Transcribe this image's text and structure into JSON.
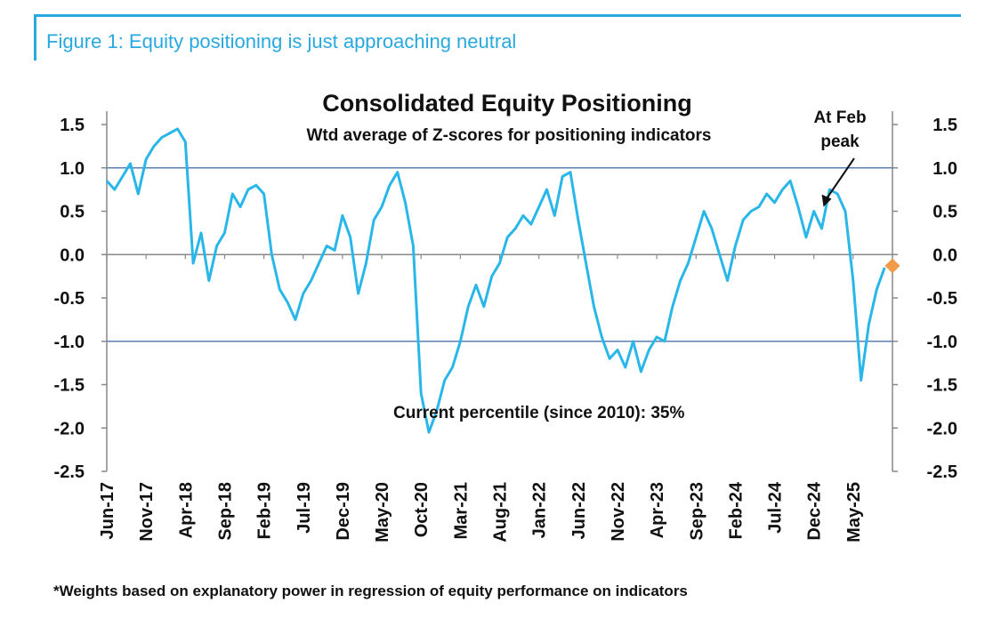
{
  "figure_title": "Figure 1: Equity positioning is just approaching neutral",
  "footnote": "*Weights based on explanatory power in regression of equity performance on indicators",
  "colors": {
    "accent": "#29a8e0",
    "series": "#29b6e8",
    "marker": "#f2994a",
    "refline": "#5b7fb5"
  },
  "chart_data": {
    "type": "line",
    "title": "Consolidated Equity Positioning",
    "subtitle": "Wtd average of Z-scores for positioning indicators",
    "ylim": [
      -2.5,
      1.5
    ],
    "yticks": [
      "1.5",
      "1.0",
      "0.5",
      "0.0",
      "-0.5",
      "-1.0",
      "-1.5",
      "-2.0",
      "-2.5"
    ],
    "ytick_values": [
      1.5,
      1.0,
      0.5,
      0.0,
      -0.5,
      -1.0,
      -1.5,
      -2.0,
      -2.5
    ],
    "reference_lines": [
      1.0,
      -1.0
    ],
    "xlim": [
      "Jun-17",
      "Oct-25"
    ],
    "xtick_labels": [
      "Jun-17",
      "Nov-17",
      "Apr-18",
      "Sep-18",
      "Feb-19",
      "Jul-19",
      "Dec-19",
      "May-20",
      "Oct-20",
      "Mar-21",
      "Aug-21",
      "Jan-22",
      "Jun-22",
      "Nov-22",
      "Apr-23",
      "Sep-23",
      "Feb-24",
      "Jul-24",
      "Dec-24",
      "May-25"
    ],
    "x": [
      "2017-06",
      "2017-07",
      "2017-08",
      "2017-09",
      "2017-10",
      "2017-11",
      "2017-12",
      "2018-01",
      "2018-02",
      "2018-03",
      "2018-04",
      "2018-05",
      "2018-06",
      "2018-07",
      "2018-08",
      "2018-09",
      "2018-10",
      "2018-11",
      "2018-12",
      "2019-01",
      "2019-02",
      "2019-03",
      "2019-04",
      "2019-05",
      "2019-06",
      "2019-07",
      "2019-08",
      "2019-09",
      "2019-10",
      "2019-11",
      "2019-12",
      "2020-01",
      "2020-02",
      "2020-03",
      "2020-04",
      "2020-05",
      "2020-06",
      "2020-07",
      "2020-08",
      "2020-09",
      "2020-10",
      "2020-11",
      "2020-12",
      "2021-01",
      "2021-02",
      "2021-03",
      "2021-04",
      "2021-05",
      "2021-06",
      "2021-07",
      "2021-08",
      "2021-09",
      "2021-10",
      "2021-11",
      "2021-12",
      "2022-01",
      "2022-02",
      "2022-03",
      "2022-04",
      "2022-05",
      "2022-06",
      "2022-07",
      "2022-08",
      "2022-09",
      "2022-10",
      "2022-11",
      "2022-12",
      "2023-01",
      "2023-02",
      "2023-03",
      "2023-04",
      "2023-05",
      "2023-06",
      "2023-07",
      "2023-08",
      "2023-09",
      "2023-10",
      "2023-11",
      "2023-12",
      "2024-01",
      "2024-02",
      "2024-03",
      "2024-04",
      "2024-05",
      "2024-06",
      "2024-07",
      "2024-08",
      "2024-09",
      "2024-10",
      "2024-11",
      "2024-12",
      "2025-01",
      "2025-02",
      "2025-03",
      "2025-04",
      "2025-05",
      "2025-06",
      "2025-07",
      "2025-08",
      "2025-09"
    ],
    "series": [
      {
        "values": [
          0.85,
          0.75,
          0.9,
          1.05,
          0.7,
          1.1,
          1.25,
          1.35,
          1.4,
          1.45,
          1.3,
          -0.1,
          0.25,
          -0.3,
          0.1,
          0.25,
          0.7,
          0.55,
          0.75,
          0.8,
          0.7,
          0.0,
          -0.4,
          -0.55,
          -0.75,
          -0.45,
          -0.3,
          -0.1,
          0.1,
          0.05,
          0.45,
          0.2,
          -0.45,
          -0.1,
          0.4,
          0.55,
          0.8,
          0.95,
          0.6,
          0.1,
          -1.6,
          -2.05,
          -1.8,
          -1.45,
          -1.3,
          -1.0,
          -0.6,
          -0.35,
          -0.6,
          -0.25,
          -0.1,
          0.2,
          0.3,
          0.45,
          0.35,
          0.55,
          0.75,
          0.45,
          0.9,
          0.95,
          0.4,
          -0.1,
          -0.6,
          -0.95,
          -1.2,
          -1.1,
          -1.3,
          -1.0,
          -1.35,
          -1.1,
          -0.95,
          -1.0,
          -0.6,
          -0.3,
          -0.1,
          0.2,
          0.5,
          0.3,
          0.0,
          -0.3,
          0.1,
          0.4,
          0.5,
          0.55,
          0.7,
          0.6,
          0.75,
          0.85,
          0.55,
          0.2,
          0.5,
          0.3,
          0.75,
          0.7,
          0.5,
          -0.3,
          -1.45,
          -0.8,
          -0.4,
          -0.15
        ],
        "color": "#29b6e8"
      }
    ],
    "latest_point": {
      "x": "2025-10",
      "y": -0.13
    },
    "annotations": [
      {
        "text": "Current percentile (since 2010): 35%"
      },
      {
        "text": "At Feb peak",
        "lines": [
          "At Feb",
          "peak"
        ]
      }
    ],
    "grid": false
  }
}
